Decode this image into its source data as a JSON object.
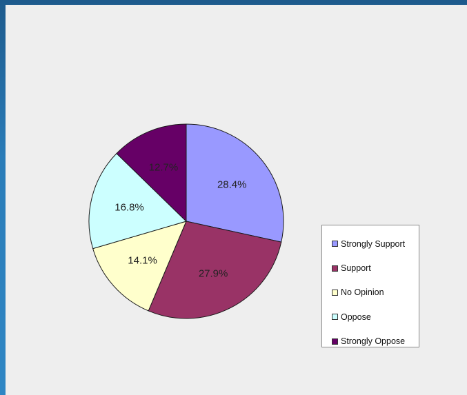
{
  "chart_data": {
    "type": "pie",
    "title": "",
    "slices": [
      {
        "name": "Strongly Support",
        "value": 28.4,
        "label": "28.4%",
        "color": "#9999ff"
      },
      {
        "name": "Support",
        "value": 27.9,
        "label": "27.9%",
        "color": "#993366"
      },
      {
        "name": "No Opinion",
        "value": 14.1,
        "label": "14.1%",
        "color": "#ffffcc"
      },
      {
        "name": "Oppose",
        "value": 16.8,
        "label": "16.8%",
        "color": "#ccffff"
      },
      {
        "name": "Strongly Oppose",
        "value": 12.7,
        "label": "12.7%",
        "color": "#660066"
      }
    ],
    "start_angle": "12 o'clock",
    "direction": "clockwise",
    "legend_position": "right"
  }
}
